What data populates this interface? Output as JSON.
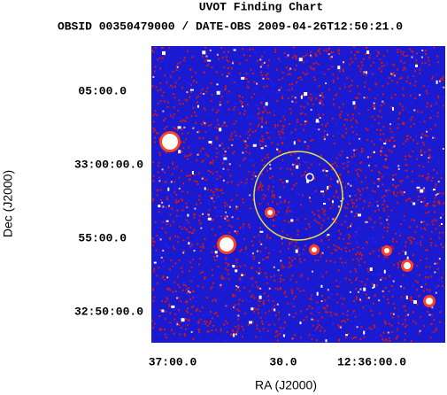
{
  "title": "UVOT Finding Chart",
  "subtitle": "OBSID 00350479000 / DATE-OBS 2009-04-26T12:50:21.0",
  "y_axis": {
    "label": "Dec (J2000)",
    "ticks": [
      "05:00.0",
      "33:00:00.0",
      "55:00.0",
      "32:50:00.0"
    ]
  },
  "x_axis": {
    "label": "RA (J2000)",
    "ticks": [
      "37:00.0",
      "30.0",
      "12:36:00.0"
    ]
  }
}
